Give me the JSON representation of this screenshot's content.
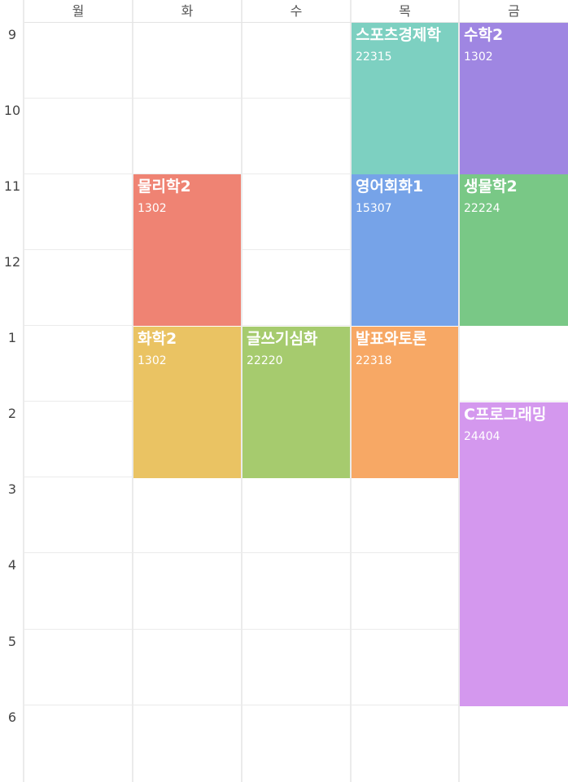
{
  "days": [
    "월",
    "화",
    "수",
    "목",
    "금"
  ],
  "hours": [
    "9",
    "10",
    "11",
    "12",
    "1",
    "2",
    "3",
    "4",
    "5",
    "6"
  ],
  "courses": [
    {
      "name": "물리학2",
      "room": "1302",
      "color": "#ef8373"
    },
    {
      "name": "화학2",
      "room": "1302",
      "color": "#eac363"
    },
    {
      "name": "글쓰기심화",
      "room": "22220",
      "color": "#a6cb6e"
    },
    {
      "name": "스포츠경제학",
      "room": "22315",
      "color": "#7dd0c1"
    },
    {
      "name": "영어회화1",
      "room": "15307",
      "color": "#76a3e8"
    },
    {
      "name": "발표와토론",
      "room": "22318",
      "color": "#f7a865"
    },
    {
      "name": "수학2",
      "room": "1302",
      "color": "#9f86e2"
    },
    {
      "name": "생물학2",
      "room": "22224",
      "color": "#79c886"
    },
    {
      "name": "C프로그래밍",
      "room": "24404",
      "color": "#d498ee"
    }
  ]
}
